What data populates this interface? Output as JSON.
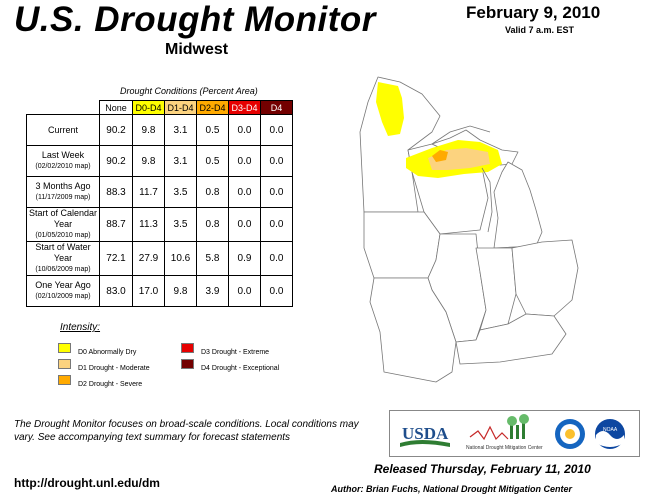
{
  "header": {
    "title": "U.S. Drought Monitor",
    "region": "Midwest",
    "date": "February 9, 2010",
    "valid": "Valid 7 a.m. EST"
  },
  "table": {
    "caption": "Drought Conditions (Percent Area)",
    "columns": [
      "None",
      "D0-D4",
      "D1-D4",
      "D2-D4",
      "D3-D4",
      "D4"
    ],
    "column_colors": [
      "#ffffff",
      "#ffff00",
      "#fcd37f",
      "#ffaa00",
      "#e60000",
      "#730000"
    ],
    "column_text_colors": [
      "#000000",
      "#000000",
      "#000000",
      "#000000",
      "#ffffff",
      "#ffffff"
    ],
    "rows": [
      {
        "label": "Current",
        "sub": "",
        "values": [
          "90.2",
          "9.8",
          "3.1",
          "0.5",
          "0.0",
          "0.0"
        ]
      },
      {
        "label": "Last Week",
        "sub": "(02/02/2010 map)",
        "values": [
          "90.2",
          "9.8",
          "3.1",
          "0.5",
          "0.0",
          "0.0"
        ]
      },
      {
        "label": "3 Months Ago",
        "sub": "(11/17/2009 map)",
        "values": [
          "88.3",
          "11.7",
          "3.5",
          "0.8",
          "0.0",
          "0.0"
        ]
      },
      {
        "label": "Start of Calendar Year",
        "sub": "(01/05/2010 map)",
        "values": [
          "88.7",
          "11.3",
          "3.5",
          "0.8",
          "0.0",
          "0.0"
        ]
      },
      {
        "label": "Start of Water Year",
        "sub": "(10/06/2009 map)",
        "values": [
          "72.1",
          "27.9",
          "10.6",
          "5.8",
          "0.9",
          "0.0"
        ]
      },
      {
        "label": "One Year Ago",
        "sub": "(02/10/2009 map)",
        "values": [
          "83.0",
          "17.0",
          "9.8",
          "3.9",
          "0.0",
          "0.0"
        ]
      }
    ]
  },
  "legend": {
    "title": "Intensity:",
    "items": [
      {
        "label": "D0 Abnormally Dry",
        "color": "#ffff00"
      },
      {
        "label": "D1 Drought - Moderate",
        "color": "#fcd37f"
      },
      {
        "label": "D2 Drought - Severe",
        "color": "#ffaa00"
      },
      {
        "label": "D3 Drought - Extreme",
        "color": "#e60000"
      },
      {
        "label": "D4 Drought - Exceptional",
        "color": "#730000"
      }
    ]
  },
  "footer": {
    "note": "The Drought Monitor focuses on broad-scale conditions. Local conditions may vary. See accompanying text summary for forecast statements",
    "url": "http://drought.unl.edu/dm",
    "released": "Released Thursday, February 11, 2010",
    "author": "Author: Brian Fuchs, National Drought Mitigation Center"
  },
  "logos": {
    "usda": "USDA",
    "ndmc": "National Drought Mitigation Center",
    "noaa": "NOAA"
  }
}
